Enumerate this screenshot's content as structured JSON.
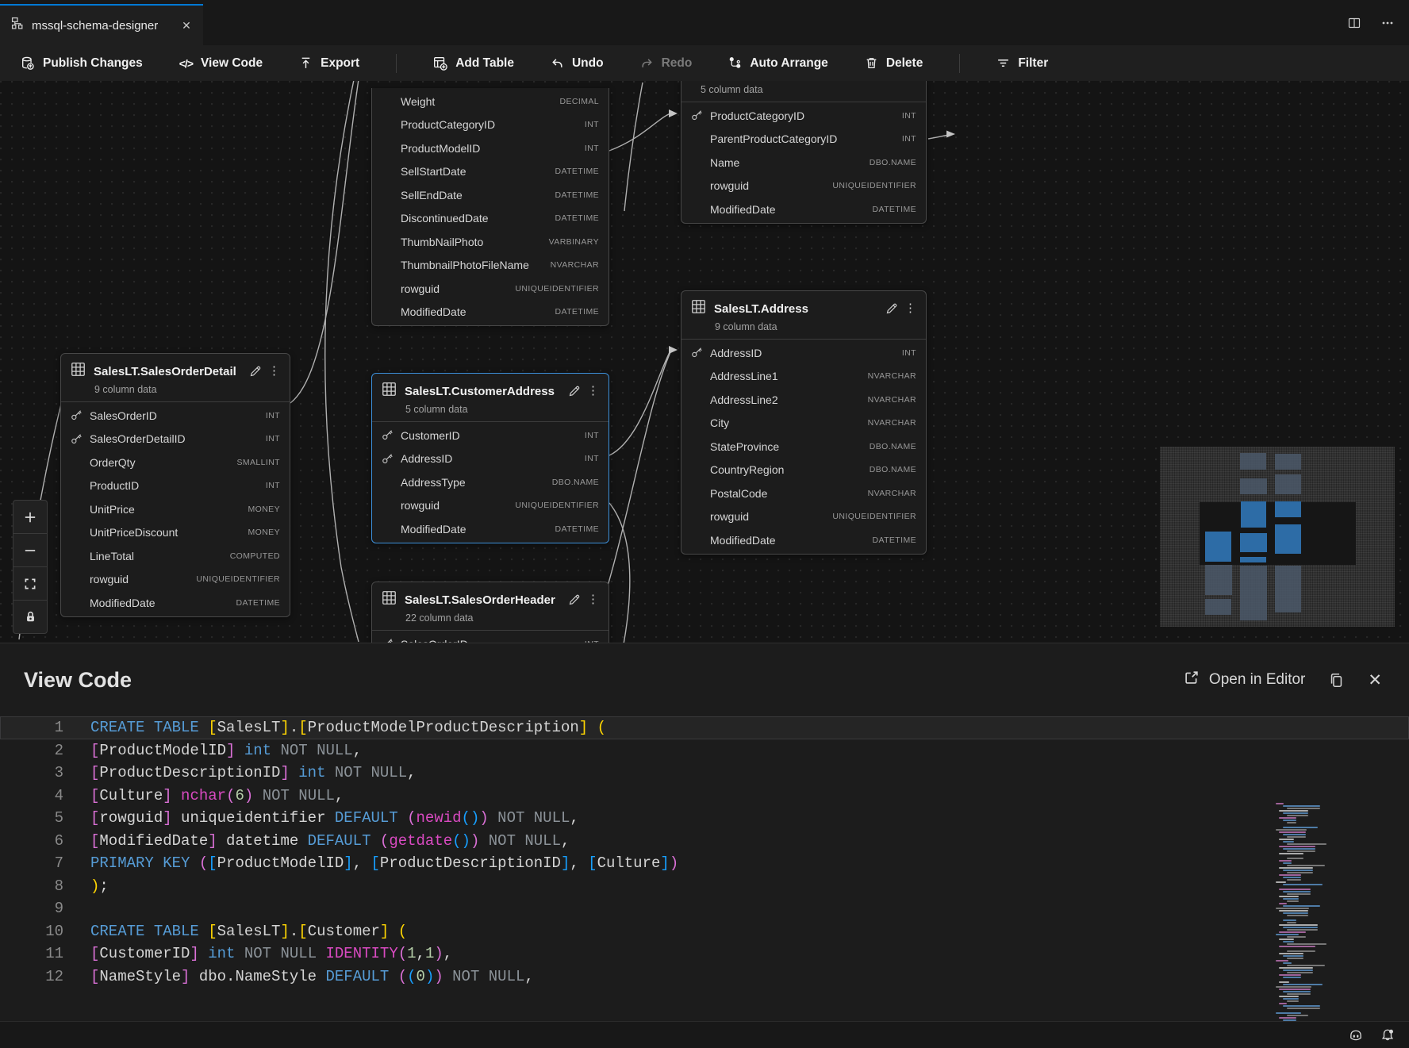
{
  "tab": {
    "title": "mssql-schema-designer"
  },
  "toolbar": {
    "publish": "Publish Changes",
    "view_code": "View Code",
    "export": "Export",
    "add_table": "Add Table",
    "undo": "Undo",
    "redo": "Redo",
    "auto_arrange": "Auto Arrange",
    "delete": "Delete",
    "filter": "Filter"
  },
  "canvas": {
    "tables": [
      {
        "id": "product",
        "title": "",
        "subtitle": "",
        "rows": [
          [
            "",
            "Weight",
            "DECIMAL"
          ],
          [
            "",
            "ProductCategoryID",
            "INT"
          ],
          [
            "",
            "ProductModelID",
            "INT"
          ],
          [
            "",
            "SellStartDate",
            "DATETIME"
          ],
          [
            "",
            "SellEndDate",
            "DATETIME"
          ],
          [
            "",
            "DiscontinuedDate",
            "DATETIME"
          ],
          [
            "",
            "ThumbNailPhoto",
            "VARBINARY"
          ],
          [
            "",
            "ThumbnailPhotoFileName",
            "NVARCHAR"
          ],
          [
            "",
            "rowguid",
            "UNIQUEIDENTIFIER"
          ],
          [
            "",
            "ModifiedDate",
            "DATETIME"
          ]
        ]
      },
      {
        "id": "product_category",
        "title": "",
        "subtitle": "5 column data",
        "rows": [
          [
            "key",
            "ProductCategoryID",
            "INT"
          ],
          [
            "",
            "ParentProductCategoryID",
            "INT"
          ],
          [
            "",
            "Name",
            "DBO.NAME"
          ],
          [
            "",
            "rowguid",
            "UNIQUEIDENTIFIER"
          ],
          [
            "",
            "ModifiedDate",
            "DATETIME"
          ]
        ]
      },
      {
        "id": "sales_order_detail",
        "title": "SalesLT.SalesOrderDetail",
        "subtitle": "9 column data",
        "rows": [
          [
            "key",
            "SalesOrderID",
            "INT"
          ],
          [
            "key",
            "SalesOrderDetailID",
            "INT"
          ],
          [
            "",
            "OrderQty",
            "SMALLINT"
          ],
          [
            "",
            "ProductID",
            "INT"
          ],
          [
            "",
            "UnitPrice",
            "MONEY"
          ],
          [
            "",
            "UnitPriceDiscount",
            "MONEY"
          ],
          [
            "",
            "LineTotal",
            "COMPUTED"
          ],
          [
            "",
            "rowguid",
            "UNIQUEIDENTIFIER"
          ],
          [
            "",
            "ModifiedDate",
            "DATETIME"
          ]
        ]
      },
      {
        "id": "customer_address",
        "title": "SalesLT.CustomerAddress",
        "subtitle": "5 column data",
        "selected": true,
        "rows": [
          [
            "key",
            "CustomerID",
            "INT"
          ],
          [
            "key",
            "AddressID",
            "INT"
          ],
          [
            "",
            "AddressType",
            "DBO.NAME"
          ],
          [
            "",
            "rowguid",
            "UNIQUEIDENTIFIER"
          ],
          [
            "",
            "ModifiedDate",
            "DATETIME"
          ]
        ]
      },
      {
        "id": "address",
        "title": "SalesLT.Address",
        "subtitle": "9 column data",
        "rows": [
          [
            "key",
            "AddressID",
            "INT"
          ],
          [
            "",
            "AddressLine1",
            "NVARCHAR"
          ],
          [
            "",
            "AddressLine2",
            "NVARCHAR"
          ],
          [
            "",
            "City",
            "NVARCHAR"
          ],
          [
            "",
            "StateProvince",
            "DBO.NAME"
          ],
          [
            "",
            "CountryRegion",
            "DBO.NAME"
          ],
          [
            "",
            "PostalCode",
            "NVARCHAR"
          ],
          [
            "",
            "rowguid",
            "UNIQUEIDENTIFIER"
          ],
          [
            "",
            "ModifiedDate",
            "DATETIME"
          ]
        ]
      },
      {
        "id": "sales_order_header",
        "title": "SalesLT.SalesOrderHeader",
        "subtitle": "22 column data",
        "rows": [
          [
            "key",
            "SalesOrderID",
            "INT"
          ]
        ]
      }
    ]
  },
  "view_code": {
    "title": "View Code",
    "open_in_editor": "Open in Editor",
    "lines": [
      {
        "n": "1",
        "hl": true,
        "tk": [
          [
            "kw",
            "CREATE TABLE"
          ],
          [
            "pl",
            " "
          ],
          [
            "b1",
            "["
          ],
          [
            "id",
            "SalesLT"
          ],
          [
            "b1",
            "]"
          ],
          [
            "pl",
            "."
          ],
          [
            "b1",
            "["
          ],
          [
            "id",
            "ProductModelProductDescription"
          ],
          [
            "b1",
            "]"
          ],
          [
            "pl",
            " "
          ],
          [
            "b1",
            "("
          ]
        ]
      },
      {
        "n": "2",
        "tk": [
          [
            "b2",
            "["
          ],
          [
            "id",
            "ProductModelID"
          ],
          [
            "b2",
            "]"
          ],
          [
            "pl",
            " "
          ],
          [
            "kw",
            "int"
          ],
          [
            "pl",
            " "
          ],
          [
            "gy",
            "NOT NULL"
          ],
          [
            "pl",
            ","
          ]
        ]
      },
      {
        "n": "3",
        "tk": [
          [
            "b2",
            "["
          ],
          [
            "id",
            "ProductDescriptionID"
          ],
          [
            "b2",
            "]"
          ],
          [
            "pl",
            " "
          ],
          [
            "kw",
            "int"
          ],
          [
            "pl",
            " "
          ],
          [
            "gy",
            "NOT NULL"
          ],
          [
            "pl",
            ","
          ]
        ]
      },
      {
        "n": "4",
        "tk": [
          [
            "b2",
            "["
          ],
          [
            "id",
            "Culture"
          ],
          [
            "b2",
            "]"
          ],
          [
            "pl",
            " "
          ],
          [
            "fn",
            "nchar"
          ],
          [
            "b2",
            "("
          ],
          [
            "nm",
            "6"
          ],
          [
            "b2",
            ")"
          ],
          [
            "pl",
            " "
          ],
          [
            "gy",
            "NOT NULL"
          ],
          [
            "pl",
            ","
          ]
        ]
      },
      {
        "n": "5",
        "tk": [
          [
            "b2",
            "["
          ],
          [
            "id",
            "rowguid"
          ],
          [
            "b2",
            "]"
          ],
          [
            "pl",
            " "
          ],
          [
            "id",
            "uniqueidentifier"
          ],
          [
            "pl",
            " "
          ],
          [
            "kw",
            "DEFAULT"
          ],
          [
            "pl",
            " "
          ],
          [
            "b2",
            "("
          ],
          [
            "fn",
            "newid"
          ],
          [
            "b3",
            "()"
          ],
          [
            "b2",
            ")"
          ],
          [
            "pl",
            " "
          ],
          [
            "gy",
            "NOT NULL"
          ],
          [
            "pl",
            ","
          ]
        ]
      },
      {
        "n": "6",
        "tk": [
          [
            "b2",
            "["
          ],
          [
            "id",
            "ModifiedDate"
          ],
          [
            "b2",
            "]"
          ],
          [
            "pl",
            " "
          ],
          [
            "id",
            "datetime"
          ],
          [
            "pl",
            " "
          ],
          [
            "kw",
            "DEFAULT"
          ],
          [
            "pl",
            " "
          ],
          [
            "b2",
            "("
          ],
          [
            "fn",
            "getdate"
          ],
          [
            "b3",
            "()"
          ],
          [
            "b2",
            ")"
          ],
          [
            "pl",
            " "
          ],
          [
            "gy",
            "NOT NULL"
          ],
          [
            "pl",
            ","
          ]
        ]
      },
      {
        "n": "7",
        "tk": [
          [
            "kw",
            "PRIMARY KEY"
          ],
          [
            "pl",
            " "
          ],
          [
            "b2",
            "("
          ],
          [
            "b3",
            "["
          ],
          [
            "id",
            "ProductModelID"
          ],
          [
            "b3",
            "]"
          ],
          [
            "pl",
            ", "
          ],
          [
            "b3",
            "["
          ],
          [
            "id",
            "ProductDescriptionID"
          ],
          [
            "b3",
            "]"
          ],
          [
            "pl",
            ", "
          ],
          [
            "b3",
            "["
          ],
          [
            "id",
            "Culture"
          ],
          [
            "b3",
            "]"
          ],
          [
            "b2",
            ")"
          ]
        ]
      },
      {
        "n": "8",
        "tk": [
          [
            "b1",
            ")"
          ],
          [
            "pl",
            ";"
          ]
        ]
      },
      {
        "n": "9",
        "tk": []
      },
      {
        "n": "10",
        "tk": [
          [
            "kw",
            "CREATE TABLE"
          ],
          [
            "pl",
            " "
          ],
          [
            "b1",
            "["
          ],
          [
            "id",
            "SalesLT"
          ],
          [
            "b1",
            "]"
          ],
          [
            "pl",
            "."
          ],
          [
            "b1",
            "["
          ],
          [
            "id",
            "Customer"
          ],
          [
            "b1",
            "]"
          ],
          [
            "pl",
            " "
          ],
          [
            "b1",
            "("
          ]
        ]
      },
      {
        "n": "11",
        "tk": [
          [
            "b2",
            "["
          ],
          [
            "id",
            "CustomerID"
          ],
          [
            "b2",
            "]"
          ],
          [
            "pl",
            " "
          ],
          [
            "kw",
            "int"
          ],
          [
            "pl",
            " "
          ],
          [
            "gy",
            "NOT NULL"
          ],
          [
            "pl",
            " "
          ],
          [
            "fn",
            "IDENTITY"
          ],
          [
            "b2",
            "("
          ],
          [
            "nm",
            "1"
          ],
          [
            "pl",
            ","
          ],
          [
            "nm",
            "1"
          ],
          [
            "b2",
            ")"
          ],
          [
            "pl",
            ","
          ]
        ]
      },
      {
        "n": "12",
        "tk": [
          [
            "b2",
            "["
          ],
          [
            "id",
            "NameStyle"
          ],
          [
            "b2",
            "]"
          ],
          [
            "pl",
            " "
          ],
          [
            "id",
            "dbo.NameStyle"
          ],
          [
            "pl",
            " "
          ],
          [
            "kw",
            "DEFAULT"
          ],
          [
            "pl",
            " "
          ],
          [
            "b2",
            "("
          ],
          [
            "b3",
            "("
          ],
          [
            "nm",
            "0"
          ],
          [
            "b3",
            ")"
          ],
          [
            "b2",
            ")"
          ],
          [
            "pl",
            " "
          ],
          [
            "gy",
            "NOT NULL"
          ],
          [
            "pl",
            ","
          ]
        ]
      }
    ]
  },
  "colors": {
    "accent": "#0078d4",
    "selection_border": "#3c8fd9",
    "keyword": "#569cd6",
    "function": "#d94ac1",
    "bracket1": "#ffd602",
    "bracket2": "#da70d6",
    "bracket3": "#179fff"
  }
}
